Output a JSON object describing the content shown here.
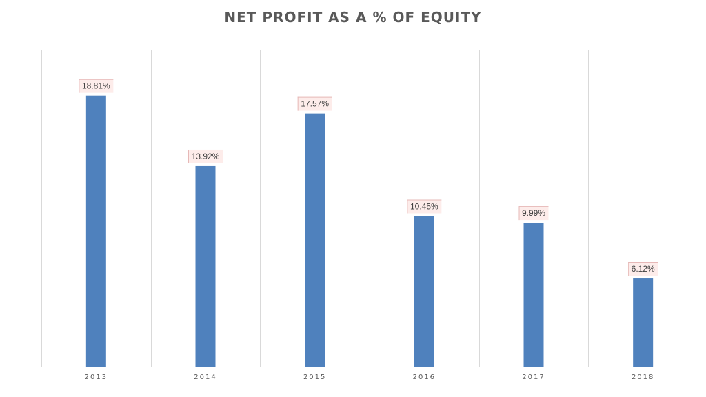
{
  "chart_data": {
    "type": "bar",
    "title": "NET PROFIT AS A % OF EQUITY",
    "xlabel": "",
    "ylabel": "",
    "categories": [
      "2013",
      "2014",
      "2015",
      "2016",
      "2017",
      "2018"
    ],
    "values": [
      18.81,
      13.92,
      17.57,
      10.45,
      9.99,
      6.12
    ],
    "data_labels": [
      "18.81%",
      "13.92%",
      "17.57%",
      "10.45%",
      "9.99%",
      "6.12%"
    ],
    "ylim": [
      0,
      22
    ],
    "grid": "vertical",
    "legend": "none",
    "colors": {
      "bar": "#4F81BD",
      "grid": "#D9D9D9",
      "axis": "#D9D9D9",
      "label_fill": "#FDECEA",
      "label_border": "#E6B8B7",
      "text": "#595959"
    }
  }
}
